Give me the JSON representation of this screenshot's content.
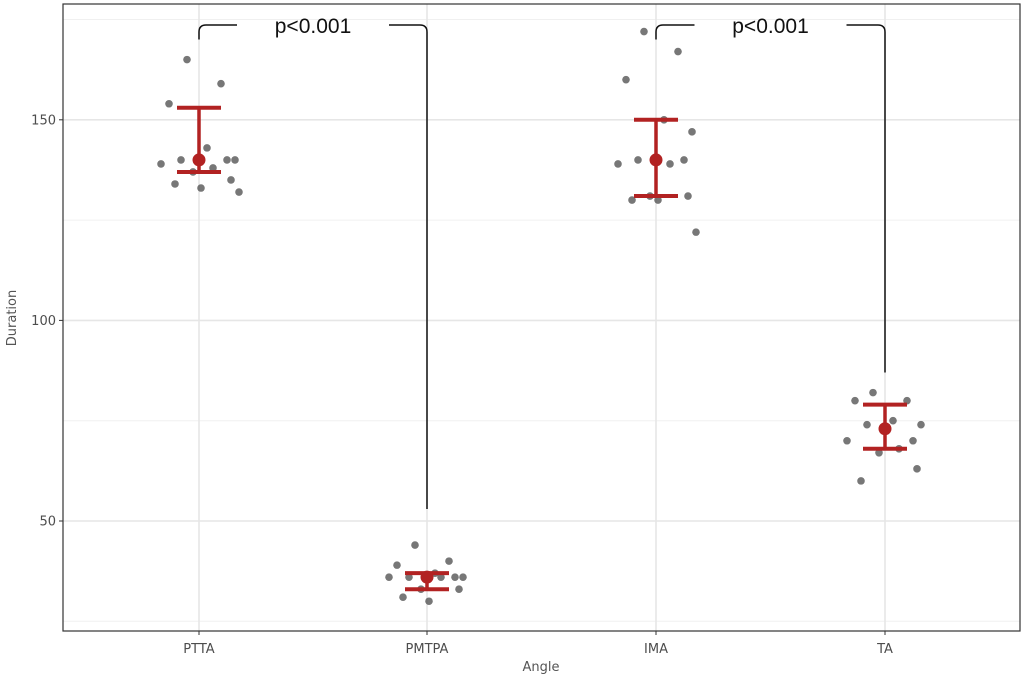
{
  "chart_data": {
    "type": "scatter",
    "title": "",
    "xlabel": "Angle",
    "ylabel": "Duration",
    "categories": [
      "PTTA",
      "PMTPA",
      "IMA",
      "TA"
    ],
    "ylim": [
      23,
      174
    ],
    "y_ticks": [
      50,
      100,
      150
    ],
    "grid": true,
    "points": [
      {
        "category": "PTTA",
        "values": [
          165,
          159,
          154,
          143,
          140,
          140,
          140,
          139,
          138,
          137,
          135,
          134,
          133,
          132
        ]
      },
      {
        "category": "PMTPA",
        "values": [
          44,
          40,
          39,
          37,
          36,
          36,
          36,
          36,
          36,
          33,
          33,
          31,
          30
        ]
      },
      {
        "category": "IMA",
        "values": [
          172,
          167,
          160,
          150,
          147,
          140,
          140,
          139,
          139,
          131,
          131,
          130,
          130,
          122
        ]
      },
      {
        "category": "TA",
        "values": [
          82,
          80,
          80,
          75,
          74,
          74,
          70,
          70,
          68,
          67,
          63,
          60
        ]
      }
    ],
    "summary": [
      {
        "category": "PTTA",
        "mean": 140,
        "lower": 137,
        "upper": 153
      },
      {
        "category": "PMTPA",
        "mean": 36,
        "lower": 33,
        "upper": 37
      },
      {
        "category": "IMA",
        "mean": 140,
        "lower": 131,
        "upper": 150
      },
      {
        "category": "TA",
        "mean": 73,
        "lower": 68,
        "upper": 79
      }
    ],
    "annotations": [
      {
        "from": "PTTA",
        "to": "PMTPA",
        "label": "p<0.001",
        "left_start": 170,
        "right_start": 53
      },
      {
        "from": "IMA",
        "to": "TA",
        "label": "p<0.001",
        "left_start": 170,
        "right_start": 87
      }
    ],
    "colors": {
      "points": "#555555",
      "summary": "#b22222",
      "bracket": "#111111"
    }
  }
}
